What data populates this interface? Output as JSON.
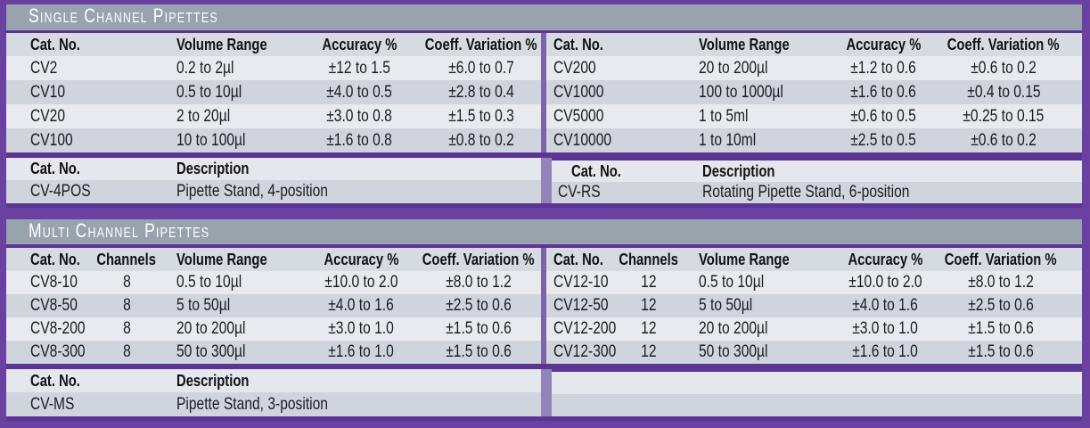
{
  "palette": {
    "frame_purple": "#6a41a0",
    "band_purple": "#5c3594",
    "gutter_purple": "#7d63aa",
    "desc_gutter_purple": "#9383bb",
    "bar_gray": "#99a3ad",
    "header_row_bg": "#d6dae1",
    "row_light": "#e8eaef",
    "row_dark": "#cfd4dd",
    "desc_header_bg": "#e4e7ec",
    "text_color": "#1d1d20",
    "bar_text_color": "#ffffff"
  },
  "sections": [
    {
      "id": "single-channel",
      "title": "Single Channel Pipettes",
      "main": {
        "left": {
          "headers": [
            "Cat. No.",
            "Volume Range",
            "Accuracy %",
            "Coeff. Variation %"
          ],
          "align": [
            "left",
            "left",
            "center",
            "center"
          ],
          "rows": [
            [
              "CV2",
              "0.2 to 2µl",
              "±12 to 1.5",
              "±6.0 to 0.7"
            ],
            [
              "CV10",
              "0.5 to 10µl",
              "±4.0 to 0.5",
              "±2.8 to 0.4"
            ],
            [
              "CV20",
              "2 to 20µl",
              "±3.0 to 0.8",
              "±1.5 to 0.3"
            ],
            [
              "CV100",
              "10 to 100µl",
              "±1.6 to 0.8",
              "±0.8 to 0.2"
            ]
          ]
        },
        "right": {
          "headers": [
            "Cat. No.",
            "Volume Range",
            "Accuracy %",
            "Coeff. Variation %"
          ],
          "align": [
            "left",
            "left",
            "center",
            "center"
          ],
          "rows": [
            [
              "CV200",
              "20 to 200µl",
              "±1.2 to 0.6",
              "±0.6 to 0.2"
            ],
            [
              "CV1000",
              "100 to 1000µl",
              "±1.6 to 0.6",
              "±0.4 to 0.15"
            ],
            [
              "CV5000",
              "1 to 5ml",
              "±0.6 to 0.5",
              "±0.25 to 0.15"
            ],
            [
              "CV10000",
              "1 to 10ml",
              "±2.5 to 0.5",
              "±0.6 to 0.2"
            ]
          ]
        }
      },
      "desc": {
        "left": {
          "headers": [
            "Cat. No.",
            "Description"
          ],
          "align": [
            "left",
            "left"
          ],
          "rows": [
            [
              "CV-4POS",
              "Pipette Stand, 4-position"
            ]
          ]
        },
        "right": {
          "headers": [
            "Cat. No.",
            "Description"
          ],
          "align": [
            "left",
            "left"
          ],
          "rows": [
            [
              "CV-RS",
              "Rotating Pipette Stand, 6-position"
            ]
          ]
        }
      }
    },
    {
      "id": "multi-channel",
      "title": "Multi Channel Pipettes",
      "main": {
        "left": {
          "headers": [
            "Cat. No.",
            "Channels",
            "Volume Range",
            "Accuracy %",
            "Coeff. Variation %"
          ],
          "align": [
            "left",
            "center",
            "left",
            "center",
            "center"
          ],
          "rows": [
            [
              "CV8-10",
              "8",
              "0.5 to 10µl",
              "±10.0 to 2.0",
              "±8.0 to 1.2"
            ],
            [
              "CV8-50",
              "8",
              "5 to 50µl",
              "±4.0 to 1.6",
              "±2.5 to 0.6"
            ],
            [
              "CV8-200",
              "8",
              "20 to 200µl",
              "±3.0 to 1.0",
              "±1.5 to 0.6"
            ],
            [
              "CV8-300",
              "8",
              "50 to 300µl",
              "±1.6 to 1.0",
              "±1.5 to 0.6"
            ]
          ]
        },
        "right": {
          "headers": [
            "Cat. No.",
            "Channels",
            "Volume Range",
            "Accuracy %",
            "Coeff. Variation %"
          ],
          "align": [
            "left",
            "center",
            "left",
            "center",
            "center"
          ],
          "rows": [
            [
              "CV12-10",
              "12",
              "0.5 to 10µl",
              "±10.0 to 2.0",
              "±8.0 to 1.2"
            ],
            [
              "CV12-50",
              "12",
              "5 to 50µl",
              "±4.0 to 1.6",
              "±2.5 to 0.6"
            ],
            [
              "CV12-200",
              "12",
              "20 to 200µl",
              "±3.0 to 1.0",
              "±1.5 to 0.6"
            ],
            [
              "CV12-300",
              "12",
              "50 to 300µl",
              "±1.6 to 1.0",
              "±1.5 to 0.6"
            ]
          ]
        }
      },
      "desc": {
        "left": {
          "headers": [
            "Cat. No.",
            "Description"
          ],
          "align": [
            "left",
            "left"
          ],
          "rows": [
            [
              "CV-MS",
              "Pipette Stand, 3-position"
            ]
          ]
        },
        "right": {
          "headers": [
            "",
            ""
          ],
          "align": [
            "left",
            "left"
          ],
          "rows": [
            [
              "",
              ""
            ]
          ]
        }
      }
    }
  ]
}
